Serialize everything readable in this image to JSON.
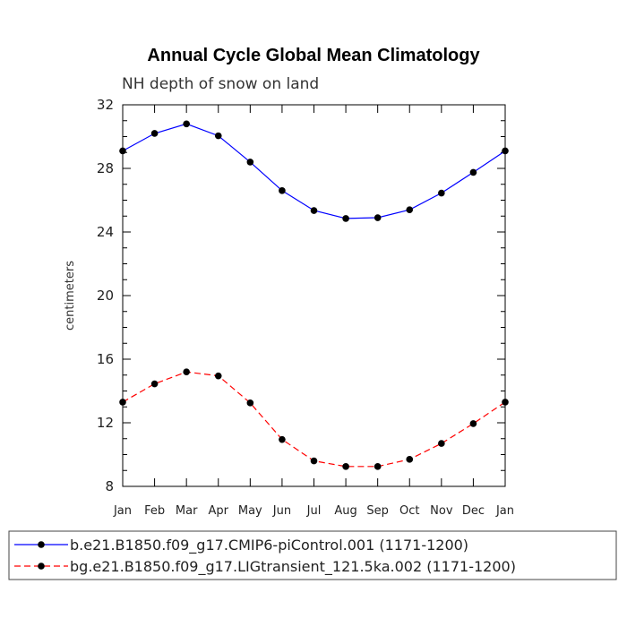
{
  "chart_data": {
    "type": "line",
    "title": "Annual Cycle Global Mean Climatology",
    "subtitle": "NH depth of snow on land",
    "xlabel": "",
    "ylabel": "centimeters",
    "categories": [
      "Jan",
      "Feb",
      "Mar",
      "Apr",
      "May",
      "Jun",
      "Jul",
      "Aug",
      "Sep",
      "Oct",
      "Nov",
      "Dec",
      "Jan"
    ],
    "ylim": [
      8,
      32
    ],
    "yticks": [
      8,
      12,
      16,
      20,
      24,
      28,
      32
    ],
    "grid": false,
    "legend_position": "bottom",
    "series": [
      {
        "name": "b.e21.B1850.f09_g17.CMIP6-piControl.001 (1171-1200)",
        "color": "#0000ff",
        "line_style": "solid",
        "values": [
          29.1,
          30.2,
          30.8,
          30.05,
          28.4,
          26.6,
          25.35,
          24.85,
          24.9,
          25.4,
          26.45,
          27.75,
          29.1
        ]
      },
      {
        "name": "bg.e21.B1850.f09_g17.LIGtransient_121.5ka.002 (1171-1200)",
        "color": "#ff0000",
        "line_style": "dashed",
        "values": [
          13.3,
          14.45,
          15.2,
          14.95,
          13.25,
          10.95,
          9.6,
          9.25,
          9.25,
          9.7,
          10.7,
          11.95,
          13.3
        ]
      }
    ]
  }
}
